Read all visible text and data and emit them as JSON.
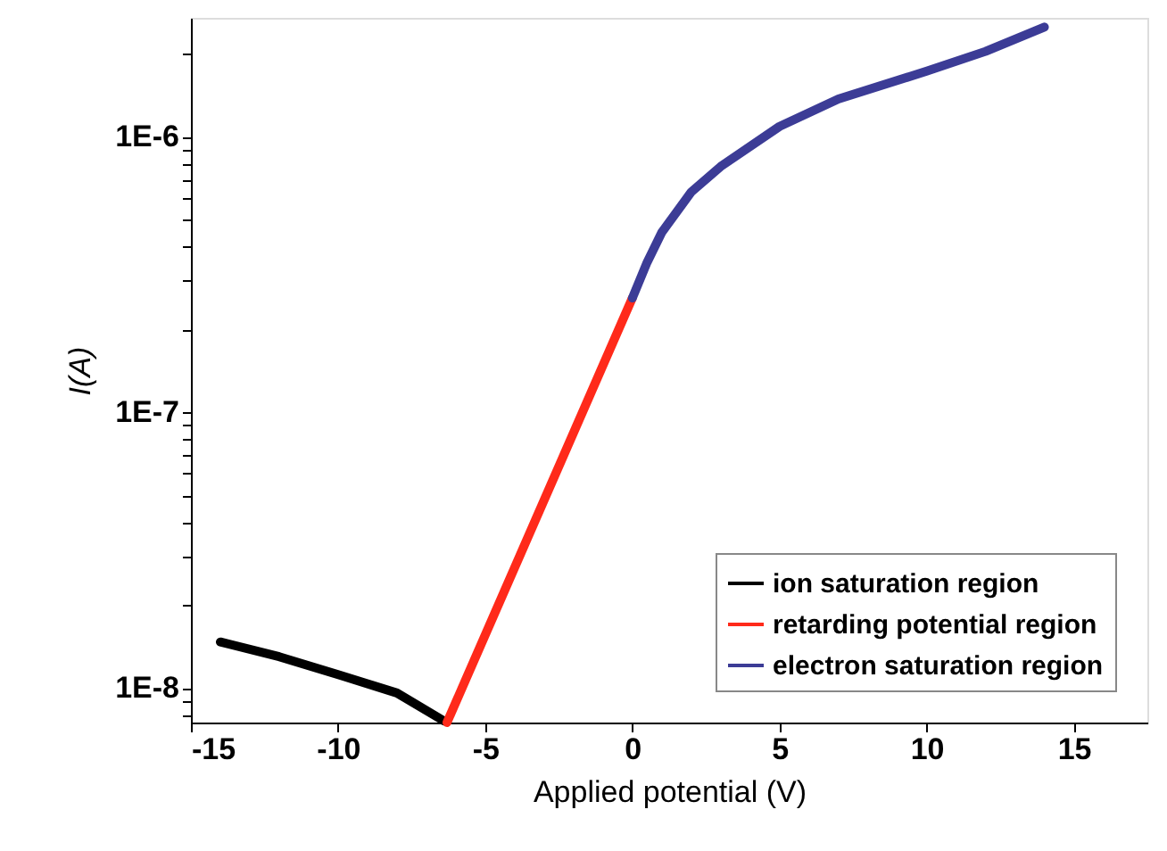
{
  "chart_data": {
    "type": "line",
    "xlabel": "Applied potential (V)",
    "ylabel": "I(A)",
    "xlim": [
      -15,
      17.5
    ],
    "xticks": [
      -15,
      -10,
      -5,
      0,
      5,
      10,
      15
    ],
    "ylim": [
      7.5e-09,
      2.7e-06
    ],
    "log": true,
    "yticks": [
      {
        "value": 8e-09,
        "label": null
      },
      {
        "value": 9e-09,
        "label": null
      },
      {
        "value": 1e-08,
        "label": "1E-8"
      },
      {
        "value": 2e-08,
        "label": null
      },
      {
        "value": 3e-08,
        "label": null
      },
      {
        "value": 4e-08,
        "label": null
      },
      {
        "value": 5e-08,
        "label": null
      },
      {
        "value": 6e-08,
        "label": null
      },
      {
        "value": 7e-08,
        "label": null
      },
      {
        "value": 8e-08,
        "label": null
      },
      {
        "value": 9e-08,
        "label": null
      },
      {
        "value": 1e-07,
        "label": "1E-7"
      },
      {
        "value": 2e-07,
        "label": null
      },
      {
        "value": 3e-07,
        "label": null
      },
      {
        "value": 4e-07,
        "label": null
      },
      {
        "value": 5e-07,
        "label": null
      },
      {
        "value": 6e-07,
        "label": null
      },
      {
        "value": 7e-07,
        "label": null
      },
      {
        "value": 8e-07,
        "label": null
      },
      {
        "value": 9e-07,
        "label": null
      },
      {
        "value": 1e-06,
        "label": "1E-6"
      },
      {
        "value": 2e-06,
        "label": null
      }
    ],
    "grid": false,
    "legend": "bottom right",
    "line_style": "solid",
    "series": [
      {
        "name": "ion saturation region",
        "color": "#000000",
        "x": [
          -14,
          -12,
          -10,
          -8,
          -6.4
        ],
        "values": [
          1.47e-08,
          1.3e-08,
          1.12e-08,
          9.6e-09,
          7.6e-09
        ]
      },
      {
        "name": "retarding potential region",
        "color": "#ff2a1a",
        "x": [
          -6.3,
          0
        ],
        "values": [
          7.5e-09,
          2.6e-07
        ]
      },
      {
        "name": "electron saturation region",
        "color": "#3c3c96",
        "x": [
          0,
          0.5,
          1,
          2,
          3,
          5,
          7,
          10,
          12,
          14
        ],
        "values": [
          2.6e-07,
          3.5e-07,
          4.5e-07,
          6.3e-07,
          7.8e-07,
          1.09e-06,
          1.37e-06,
          1.73e-06,
          2.04e-06,
          2.5e-06
        ]
      }
    ]
  }
}
